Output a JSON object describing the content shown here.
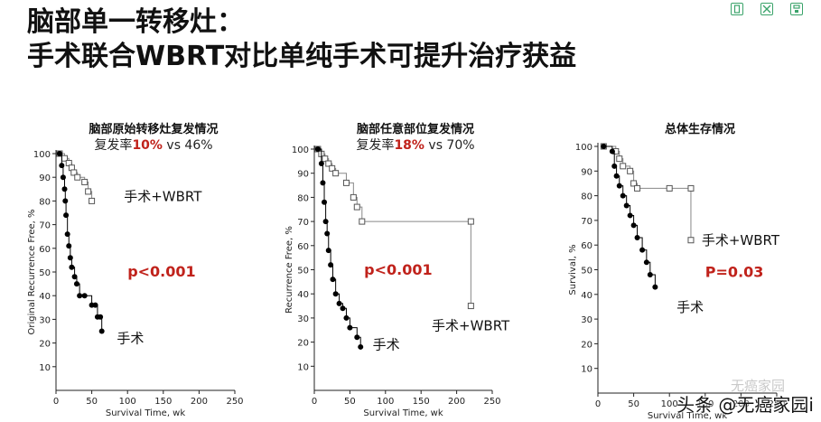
{
  "title": {
    "line1": "脑部单一转移灶：",
    "line2": "手术联合WBRT对比单纯手术可提升治疗获益"
  },
  "toolbar": {
    "icons": [
      "copy-icon",
      "expand-icon",
      "save-icon"
    ],
    "color": "#3aa36a"
  },
  "watermark": {
    "faded": "无癌家园",
    "text": "头条 @无癌家园i"
  },
  "colors": {
    "pvalue": "#c0221b",
    "surgery_series": "#000000",
    "wbrt_series": "#888888"
  },
  "chart_data": [
    {
      "type": "line",
      "title": "脑部原始转移灶复发情况",
      "subtitle_parts": [
        "复发率",
        "10%",
        " vs 46%"
      ],
      "xlabel": "Survival Time, wk",
      "ylabel": "Original Recurrence Free, %",
      "xlim": [
        0,
        250
      ],
      "ylim": [
        0,
        100
      ],
      "xticks": [
        0,
        50,
        100,
        150,
        200,
        250
      ],
      "yticks": [
        10,
        20,
        30,
        40,
        50,
        60,
        70,
        80,
        90,
        100
      ],
      "series": [
        {
          "name": "手术+WBRT",
          "marker": "open-square",
          "points": [
            [
              5,
              100
            ],
            [
              12,
              98
            ],
            [
              18,
              96
            ],
            [
              22,
              94
            ],
            [
              25,
              92
            ],
            [
              30,
              90
            ],
            [
              40,
              88
            ],
            [
              45,
              84
            ],
            [
              50,
              80
            ]
          ]
        },
        {
          "name": "手术",
          "marker": "filled-circle",
          "points": [
            [
              5,
              100
            ],
            [
              8,
              95
            ],
            [
              10,
              90
            ],
            [
              12,
              85
            ],
            [
              13,
              80
            ],
            [
              14,
              74
            ],
            [
              16,
              66
            ],
            [
              18,
              61
            ],
            [
              20,
              56
            ],
            [
              22,
              52
            ],
            [
              26,
              48
            ],
            [
              29,
              45
            ],
            [
              33,
              40
            ],
            [
              40,
              40
            ],
            [
              50,
              36
            ],
            [
              55,
              36
            ],
            [
              58,
              31
            ],
            [
              62,
              31
            ],
            [
              64,
              25
            ]
          ]
        }
      ],
      "labels": [
        {
          "text": "手术+WBRT",
          "x": 95,
          "y": 80
        },
        {
          "text": "手术",
          "x": 85,
          "y": 20
        }
      ],
      "pvalue": {
        "text": "p<0.001",
        "x": 100,
        "y": 48
      }
    },
    {
      "type": "line",
      "title": "脑部任意部位复发情况",
      "subtitle_parts": [
        "复发率",
        "18%",
        " vs 70%"
      ],
      "xlabel": "Survival Time, wk",
      "ylabel": "Recurrence Free, %",
      "xlim": [
        0,
        250
      ],
      "ylim": [
        0,
        100
      ],
      "xticks": [
        0,
        50,
        100,
        150,
        200,
        250
      ],
      "yticks": [
        10,
        20,
        30,
        40,
        50,
        60,
        70,
        80,
        90,
        100
      ],
      "series": [
        {
          "name": "手术+WBRT",
          "marker": "open-square",
          "points": [
            [
              5,
              100
            ],
            [
              10,
              98
            ],
            [
              15,
              96
            ],
            [
              20,
              94
            ],
            [
              25,
              92
            ],
            [
              30,
              90
            ],
            [
              45,
              86
            ],
            [
              55,
              80
            ],
            [
              60,
              76
            ],
            [
              67,
              70
            ],
            [
              220,
              70
            ],
            [
              220,
              35
            ]
          ]
        },
        {
          "name": "手术",
          "marker": "filled-circle",
          "points": [
            [
              5,
              100
            ],
            [
              10,
              94
            ],
            [
              12,
              86
            ],
            [
              14,
              78
            ],
            [
              16,
              70
            ],
            [
              18,
              65
            ],
            [
              20,
              58
            ],
            [
              23,
              52
            ],
            [
              26,
              46
            ],
            [
              30,
              40
            ],
            [
              35,
              36
            ],
            [
              40,
              34
            ],
            [
              45,
              30
            ],
            [
              50,
              26
            ],
            [
              60,
              22
            ],
            [
              65,
              18
            ]
          ]
        }
      ],
      "labels": [
        {
          "text": "手术+WBRT",
          "x": 165,
          "y": 25
        },
        {
          "text": "手术",
          "x": 82,
          "y": 17
        }
      ],
      "pvalue": {
        "text": "p<0.001",
        "x": 70,
        "y": 48
      }
    },
    {
      "type": "line",
      "title": "总体生存情况",
      "xlabel": "Survival Time, wk",
      "ylabel": "Survival, %",
      "xlim": [
        0,
        250
      ],
      "ylim": [
        0,
        100
      ],
      "xticks": [
        0,
        50,
        100,
        150,
        200,
        250
      ],
      "yticks": [
        10,
        20,
        30,
        40,
        50,
        60,
        70,
        80,
        90,
        100
      ],
      "series": [
        {
          "name": "手术+WBRT",
          "marker": "open-square",
          "points": [
            [
              8,
              100
            ],
            [
              25,
              98
            ],
            [
              30,
              95
            ],
            [
              35,
              92
            ],
            [
              45,
              90
            ],
            [
              50,
              85
            ],
            [
              55,
              83
            ],
            [
              100,
              83
            ],
            [
              130,
              83
            ],
            [
              130,
              62
            ]
          ]
        },
        {
          "name": "手术",
          "marker": "filled-circle",
          "points": [
            [
              8,
              100
            ],
            [
              20,
              98
            ],
            [
              23,
              92
            ],
            [
              26,
              88
            ],
            [
              30,
              84
            ],
            [
              35,
              80
            ],
            [
              40,
              76
            ],
            [
              45,
              72
            ],
            [
              50,
              68
            ],
            [
              55,
              63
            ],
            [
              62,
              58
            ],
            [
              68,
              53
            ],
            [
              73,
              48
            ],
            [
              80,
              43
            ]
          ]
        }
      ],
      "labels": [
        {
          "text": "手术+WBRT",
          "x": 145,
          "y": 60
        },
        {
          "text": "手术",
          "x": 110,
          "y": 33
        }
      ],
      "pvalue": {
        "text": "P=0.03",
        "x": 150,
        "y": 47
      }
    }
  ]
}
